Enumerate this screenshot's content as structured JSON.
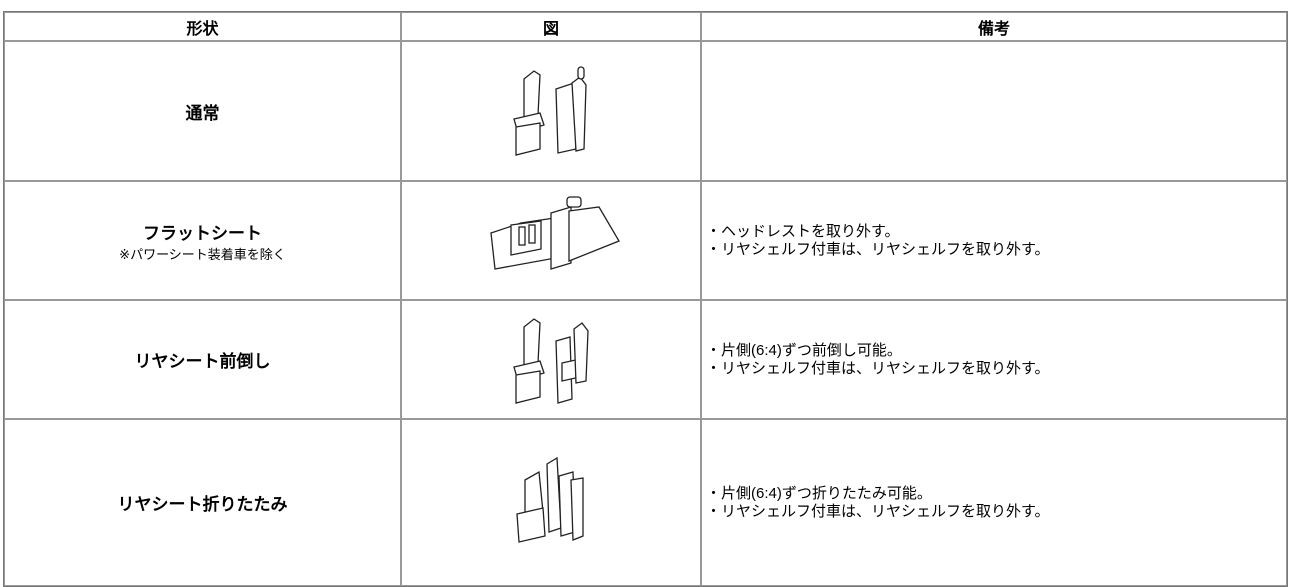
{
  "table": {
    "headers": [
      "形状",
      "図",
      "備考"
    ],
    "rows": [
      {
        "shape": "通常",
        "remarks": []
      },
      {
        "shape": "フラットシート",
        "note": "※パワーシート装着車を除く",
        "remarks": [
          "・ヘッドレストを取り外す。",
          "・リヤシェルフ付車は、リヤシェルフを取り外す。"
        ]
      },
      {
        "shape": "リヤシート前倒し",
        "remarks": [
          "・片側(6:4)ずつ前倒し可能。",
          "・リヤシェルフ付車は、リヤシェルフを取り外す。"
        ]
      },
      {
        "shape": "リヤシート折りたたみ",
        "remarks": [
          "・片側(6:4)ずつ折りたたみ可能。",
          "・リヤシェルフ付車は、リヤシェルフを取り外す。"
        ]
      }
    ]
  }
}
